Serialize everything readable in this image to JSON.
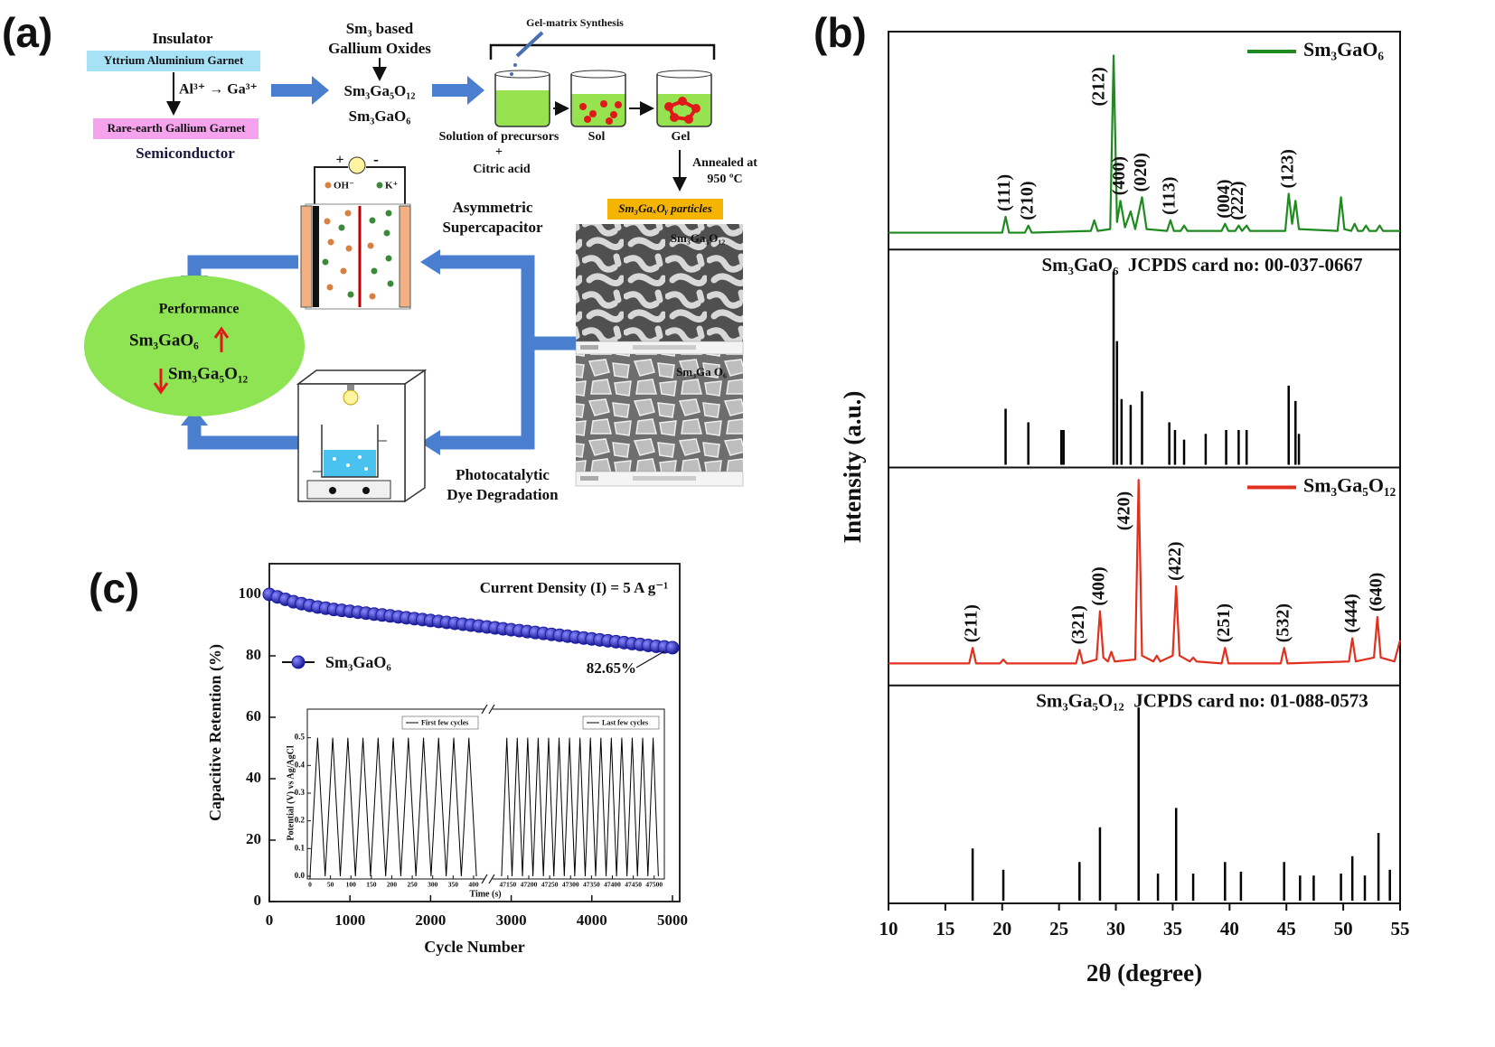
{
  "panel_labels": [
    "(a)",
    "(b)",
    "(c)"
  ],
  "diagram": {
    "insulator": "Insulator",
    "yag": "Yttrium Aluminium Garnet",
    "substitution": "Al³⁺ → Ga³⁺",
    "rgg": "Rare-earth Gallium Garnet",
    "semiconductor": "Semiconductor",
    "oxides_title": [
      "Sm₃ based",
      "Gallium Oxides"
    ],
    "compound_1": "Sm₃Ga₅O₁₂",
    "compound_2": "Sm₃GaO₆",
    "gel_title": "Gel-matrix Synthesis",
    "solution": [
      "Solution of precursors",
      "+",
      "Citric acid"
    ],
    "sol": "Sol",
    "gel": "Gel",
    "anneal": [
      "Annealed at",
      "950 ºC"
    ],
    "particles": "Sm₃GaₓOᵧ particles",
    "sem_1": "Sm₃Ga₅O₁₂",
    "sem_2": "Sm₃Ga O₆",
    "plus": "+",
    "minus": "-",
    "oh": "OH⁻",
    "k": "K⁺",
    "capacitor": [
      "Asymmetric",
      "Supercapacitor"
    ],
    "performance": "Performance",
    "perf_1": "Sm₃GaO₆",
    "perf_2": "Sm₃Ga₅O₁₂",
    "photocatalysis": [
      "Photocatalytic",
      "Dye Degradation"
    ]
  },
  "chart_data": [
    {
      "type": "stack",
      "xlabel": "2θ (degree)",
      "ylabel": "Intensity (a.u.)",
      "xlim": [
        10,
        55
      ],
      "xticks": [
        10,
        15,
        20,
        25,
        30,
        35,
        40,
        45,
        50,
        55
      ],
      "panels": [
        {
          "type": "line",
          "ylim": [
            0,
            120
          ],
          "x": [
            10,
            20,
            20.3,
            20.6,
            22,
            22.3,
            22.6,
            27.8,
            28.1,
            28.4,
            29.5,
            29.8,
            30.1,
            30.4,
            30.8,
            31.3,
            31.7,
            32.3,
            32.7,
            34.5,
            34.8,
            35.1,
            35.7,
            36,
            36.3,
            39.3,
            39.6,
            39.9,
            40.5,
            40.8,
            41.1,
            41.5,
            41.8,
            44.9,
            45.2,
            45.5,
            45.8,
            46.1,
            49.5,
            49.8,
            50.1,
            50.7,
            51,
            51.3,
            51.7,
            52,
            52.3,
            52.9,
            53.2,
            53.5,
            55
          ],
          "series": [
            {
              "name": "Sm₃GaO₆",
              "color": "#1f8a1f",
              "values": [
                8,
                8,
                17,
                8,
                8,
                12,
                8,
                9,
                15,
                9,
                10,
                108,
                14,
                26,
                11,
                20,
                10,
                28,
                10,
                9,
                15,
                9,
                9,
                12,
                9,
                9,
                13,
                9,
                9,
                12,
                9,
                12,
                9,
                9,
                30,
                13,
                26,
                10,
                9,
                28,
                10,
                9,
                13,
                9,
                9,
                12,
                9,
                9,
                12,
                9,
                9
              ]
            }
          ],
          "annotations": [
            {
              "text": "(111)",
              "x": 20.3
            },
            {
              "text": "(210)",
              "x": 22.3
            },
            {
              "text": "(212)",
              "x": 29.8
            },
            {
              "text": "(400)",
              "x": 30.4
            },
            {
              "text": "(020)",
              "x": 32.3
            },
            {
              "text": "(113)",
              "x": 34.8
            },
            {
              "text": "(004)",
              "x": 39.6
            },
            {
              "text": "(222)",
              "x": 40.8
            },
            {
              "text": "(123)",
              "x": 45.2
            }
          ]
        },
        {
          "type": "stem",
          "title": "Sm₃GaO₆  JCPDS card no: 00-037-0667",
          "ylim": [
            0,
            110
          ],
          "color": "#000000",
          "x": [
            20.3,
            22.3,
            25.2,
            25.4,
            29.8,
            30.1,
            30.5,
            31.3,
            32.3,
            34.7,
            35.2,
            36,
            37.9,
            39.7,
            40.8,
            41.5,
            45.2,
            45.8,
            46.1
          ],
          "values": [
            29,
            22,
            18,
            18,
            100,
            64,
            34,
            31,
            38,
            22,
            18,
            13,
            16,
            18,
            18,
            18,
            41,
            33,
            16
          ]
        },
        {
          "type": "line",
          "ylim": [
            0,
            110
          ],
          "x": [
            10,
            17.1,
            17.4,
            17.7,
            19.8,
            20.1,
            20.4,
            26.5,
            26.8,
            27.1,
            28.3,
            28.6,
            28.9,
            29.3,
            29.6,
            29.9,
            31.7,
            32.0,
            32.3,
            33.3,
            33.6,
            33.9,
            35.0,
            35.3,
            35.6,
            36.5,
            36.8,
            37.1,
            39.3,
            39.6,
            39.9,
            44.5,
            44.8,
            45.1,
            50.5,
            50.8,
            51.1,
            52.7,
            53.0,
            53.3,
            54.5,
            55
          ],
          "series": [
            {
              "name": "Sm₃Ga₅O₁₂",
              "color": "#e0301e",
              "values": [
                10,
                10,
                18,
                10,
                10,
                12,
                10,
                10,
                17,
                10,
                12,
                37,
                13,
                11,
                16,
                11,
                12,
                105,
                14,
                11,
                14,
                11,
                14,
                50,
                14,
                11,
                13,
                11,
                10,
                18,
                10,
                10,
                18,
                10,
                11,
                23,
                11,
                13,
                34,
                13,
                11,
                22
              ]
            }
          ],
          "annotations": [
            {
              "text": "(211)",
              "x": 17.4
            },
            {
              "text": "(321)",
              "x": 26.8
            },
            {
              "text": "(400)",
              "x": 28.6
            },
            {
              "text": "(420)",
              "x": 32.0
            },
            {
              "text": "(422)",
              "x": 35.3
            },
            {
              "text": "(251)",
              "x": 39.6
            },
            {
              "text": "(532)",
              "x": 44.8
            },
            {
              "text": "(444)",
              "x": 50.8
            },
            {
              "text": "(640)",
              "x": 53.0
            }
          ]
        },
        {
          "type": "stem",
          "title": "Sm₃Ga₅O₁₂  JCPDS card no: 01-088-0573",
          "ylim": [
            0,
            110
          ],
          "color": "#000000",
          "x": [
            17.4,
            20.1,
            26.8,
            28.6,
            32.0,
            33.7,
            35.3,
            36.8,
            39.6,
            41.0,
            44.8,
            46.2,
            47.4,
            49.8,
            50.8,
            51.9,
            53.1,
            54.1
          ],
          "values": [
            27,
            16,
            20,
            38,
            100,
            14,
            48,
            14,
            20,
            15,
            20,
            13,
            13,
            14,
            23,
            13,
            35,
            16
          ]
        }
      ]
    },
    {
      "type": "cycling",
      "xlabel": "Cycle Number",
      "ylabel": "Capacitive Retention (%)",
      "xlim": [
        0,
        5090
      ],
      "ylim": [
        0,
        110
      ],
      "xticks": [
        0,
        1000,
        2000,
        3000,
        4000,
        5000
      ],
      "yticks": [
        0,
        20,
        40,
        60,
        80,
        100
      ],
      "annotation": "Current Density (I) = 5 A g⁻¹",
      "end_label": "82.65%",
      "x": [
        0,
        100,
        200,
        300,
        400,
        500,
        600,
        700,
        800,
        900,
        1000,
        1100,
        1200,
        1300,
        1400,
        1500,
        1600,
        1700,
        1800,
        1900,
        2000,
        2100,
        2200,
        2300,
        2400,
        2500,
        2600,
        2700,
        2800,
        2900,
        3000,
        3100,
        3200,
        3300,
        3400,
        3500,
        3600,
        3700,
        3800,
        3900,
        4000,
        4100,
        4200,
        4300,
        4400,
        4500,
        4600,
        4700,
        4800,
        4900,
        5000
      ],
      "series": [
        {
          "name": "Sm₃GaO₆",
          "color": "#1c1ca8",
          "values": [
            100,
            99.2,
            98.4,
            97.6,
            97.0,
            96.4,
            95.9,
            95.5,
            95.1,
            94.8,
            94.5,
            94.2,
            93.9,
            93.6,
            93.3,
            93.0,
            92.7,
            92.4,
            92.1,
            91.8,
            91.5,
            91.2,
            90.9,
            90.6,
            90.3,
            90.0,
            89.7,
            89.4,
            89.1,
            88.8,
            88.5,
            88.2,
            87.9,
            87.6,
            87.3,
            87.0,
            86.7,
            86.4,
            86.1,
            85.8,
            85.5,
            85.2,
            84.9,
            84.6,
            84.3,
            84.0,
            83.7,
            83.4,
            83.1,
            82.9,
            82.65
          ]
        }
      ],
      "inset": {
        "xlabel": "Time (s)",
        "ylabel": "Potential (V) vs Ag/AgCl",
        "ylim": [
          0,
          0.6
        ],
        "yticks": [
          {
            "value": 0,
            "label": "0.0"
          },
          0.1,
          0.2,
          0.3,
          0.4,
          0.5
        ],
        "parts": [
          {
            "name": "First few cycles",
            "color": "#000000",
            "xlim": [
              0,
              420
            ],
            "xticks": [
              0,
              50,
              100,
              150,
              200,
              250,
              300,
              350,
              400
            ],
            "x": [
              0,
              18.5,
              37,
              55.5,
              74,
              92.5,
              111,
              129.5,
              148,
              166.5,
              185,
              203.5,
              222,
              240.5,
              259,
              277.5,
              296,
              314.5,
              333,
              351.5,
              370,
              388.5,
              407
            ],
            "values": [
              0,
              0.5,
              0,
              0.5,
              0,
              0.5,
              0,
              0.5,
              0,
              0.5,
              0,
              0.5,
              0,
              0.5,
              0,
              0.5,
              0,
              0.5,
              0,
              0.5,
              0,
              0.5,
              0
            ]
          },
          {
            "name": "Last few cycles",
            "color": "#000000",
            "xlim": [
              47120,
              47520
            ],
            "xticks": [
              47150,
              47200,
              47250,
              47300,
              47350,
              47400,
              47450,
              47500
            ],
            "x": [
              47135,
              47147.5,
              47160,
              47172.5,
              47185,
              47197.5,
              47210,
              47222.5,
              47235,
              47247.5,
              47260,
              47272.5,
              47285,
              47297.5,
              47310,
              47322.5,
              47335,
              47347.5,
              47360,
              47372.5,
              47385,
              47397.5,
              47410,
              47422.5,
              47435,
              47447.5,
              47460,
              47472.5,
              47485,
              47497.5,
              47510
            ],
            "values": [
              0,
              0.5,
              0,
              0.5,
              0,
              0.5,
              0,
              0.5,
              0,
              0.5,
              0,
              0.5,
              0,
              0.5,
              0,
              0.5,
              0,
              0.5,
              0,
              0.5,
              0,
              0.5,
              0,
              0.5,
              0,
              0.5,
              0,
              0.5,
              0,
              0.5,
              0
            ]
          }
        ]
      }
    }
  ]
}
